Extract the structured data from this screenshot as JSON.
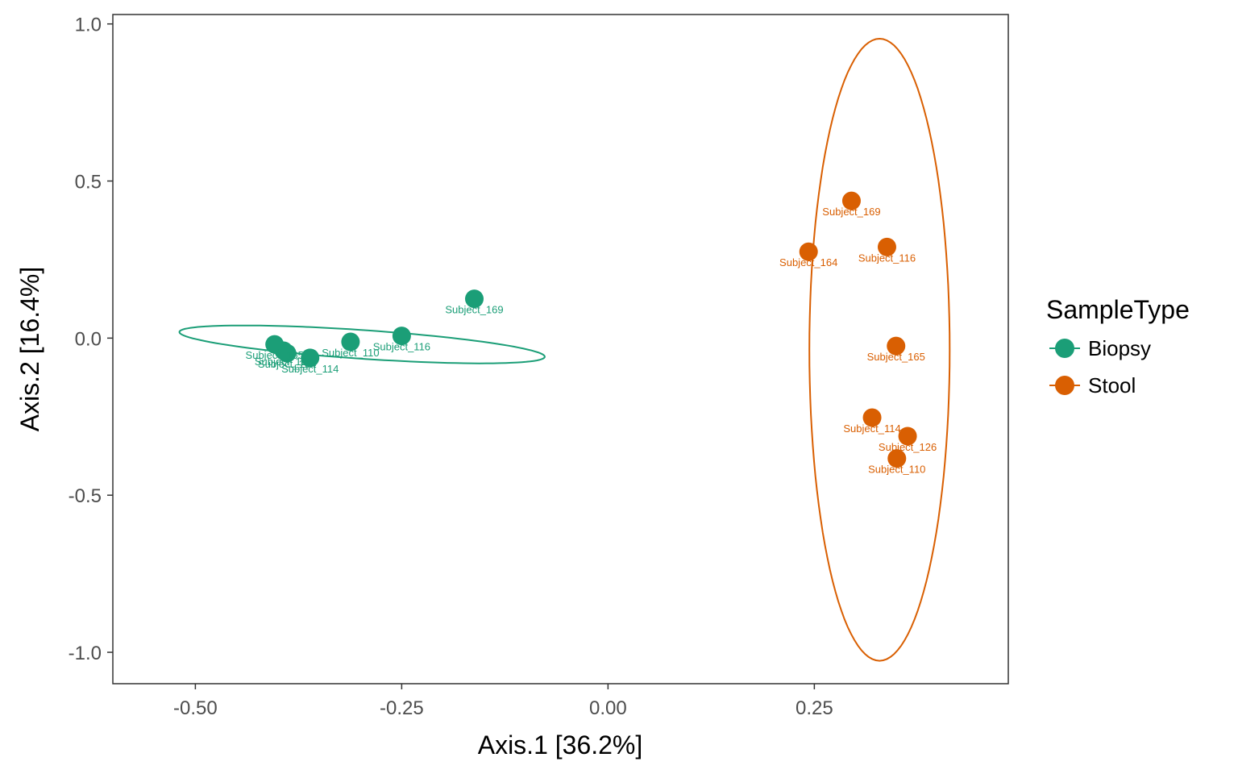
{
  "chart_data": {
    "type": "scatter",
    "xlabel": "Axis.1   [36.2%]",
    "ylabel": "Axis.2   [16.4%]",
    "xlim": [
      -0.6,
      0.485
    ],
    "ylim": [
      -1.1,
      1.03
    ],
    "x_ticks": [
      -0.5,
      -0.25,
      0.0,
      0.25
    ],
    "x_tick_labels": [
      "-0.50",
      "-0.25",
      "0.00",
      "0.25"
    ],
    "y_ticks": [
      1.0,
      0.5,
      0.0,
      -0.5,
      -1.0
    ],
    "y_tick_labels": [
      "1.0",
      "0.5",
      "0.0",
      "-0.5",
      "-1.0"
    ],
    "grid": false,
    "legend": {
      "title": "SampleType",
      "placement": "right",
      "entries": [
        "Biopsy",
        "Stool"
      ]
    },
    "colors": {
      "Biopsy": "#1b9e77",
      "Stool": "#d95f02"
    },
    "series": [
      {
        "name": "Biopsy",
        "color": "#1b9e77",
        "points": [
          {
            "x": -0.162,
            "y": 0.125,
            "label": "Subject_169"
          },
          {
            "x": -0.25,
            "y": 0.007,
            "label": "Subject_116"
          },
          {
            "x": -0.312,
            "y": -0.012,
            "label": "Subject_110"
          },
          {
            "x": -0.361,
            "y": -0.063,
            "label": "Subject_114"
          },
          {
            "x": -0.393,
            "y": -0.04,
            "label": "Subject_126"
          },
          {
            "x": -0.404,
            "y": -0.02,
            "label": "Subject_165"
          },
          {
            "x": -0.389,
            "y": -0.048,
            "label": "Subject_164"
          }
        ],
        "ellipse": {
          "cx": -0.298,
          "cy": -0.02,
          "rx": 0.225,
          "ry": 0.045,
          "angle_deg": -10.5
        }
      },
      {
        "name": "Stool",
        "color": "#d95f02",
        "points": [
          {
            "x": 0.295,
            "y": 0.437,
            "label": "Subject_169"
          },
          {
            "x": 0.243,
            "y": 0.275,
            "label": "Subject_164"
          },
          {
            "x": 0.338,
            "y": 0.29,
            "label": "Subject_116"
          },
          {
            "x": 0.349,
            "y": -0.025,
            "label": "Subject_165"
          },
          {
            "x": 0.32,
            "y": -0.253,
            "label": "Subject_114"
          },
          {
            "x": 0.363,
            "y": -0.312,
            "label": "Subject_126"
          },
          {
            "x": 0.35,
            "y": -0.383,
            "label": "Subject_110"
          }
        ],
        "ellipse": {
          "cx": 0.329,
          "cy": -0.037,
          "rx": 0.085,
          "ry": 0.99,
          "angle_deg": 0
        }
      }
    ]
  }
}
